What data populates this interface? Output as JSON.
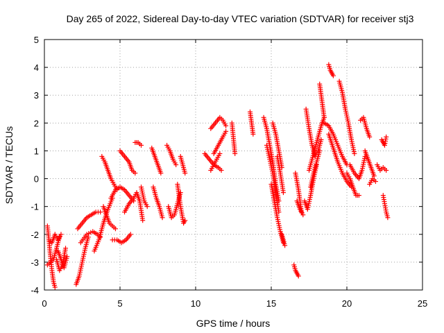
{
  "chart_data": {
    "type": "scatter",
    "title": "Day 265 of 2022, Sidereal Day-to-day VTEC variation (SDTVAR) for receiver stj3",
    "xlabel": "GPS time / hours",
    "ylabel": "SDTVAR / TECUs",
    "xlim": [
      0,
      25
    ],
    "ylim": [
      -4,
      5
    ],
    "xticks": [
      0,
      5,
      10,
      15,
      20,
      25
    ],
    "yticks": [
      -4,
      -3,
      -2,
      -1,
      0,
      1,
      2,
      3,
      4,
      5
    ],
    "grid": true,
    "marker": "plus",
    "color": "#ff0000",
    "segments": [
      {
        "x": [
          0.2,
          0.3,
          0.4,
          0.5,
          0.6,
          0.7
        ],
        "y": [
          -1.7,
          -2.2,
          -2.8,
          -3.3,
          -3.7,
          -3.9
        ]
      },
      {
        "x": [
          0.2,
          0.4,
          0.6,
          0.8,
          1.0
        ],
        "y": [
          -3.1,
          -3.0,
          -2.9,
          -2.5,
          -2.1
        ]
      },
      {
        "x": [
          0.3,
          0.5,
          0.7,
          0.9,
          1.1
        ],
        "y": [
          -2.2,
          -2.3,
          -2.0,
          -2.2,
          -2.0
        ]
      },
      {
        "x": [
          0.8,
          1.0,
          1.2,
          1.4
        ],
        "y": [
          -2.9,
          -3.3,
          -3.1,
          -2.5
        ]
      },
      {
        "x": [
          0.9,
          1.1,
          1.3,
          1.5
        ],
        "y": [
          -2.6,
          -2.9,
          -3.2,
          -2.8
        ]
      },
      {
        "x": [
          2.1,
          2.3,
          2.5,
          2.7,
          2.9
        ],
        "y": [
          -3.8,
          -3.5,
          -3.0,
          -2.5,
          -2.1
        ]
      },
      {
        "x": [
          2.2,
          2.5,
          2.8,
          3.1,
          3.4,
          3.7
        ],
        "y": [
          -1.8,
          -1.6,
          -1.4,
          -1.3,
          -1.2,
          -1.2
        ]
      },
      {
        "x": [
          2.4,
          2.8,
          3.2,
          3.5,
          3.7
        ],
        "y": [
          -2.3,
          -2.0,
          -1.9,
          -2.0,
          -2.1
        ]
      },
      {
        "x": [
          3.3,
          3.6,
          3.9,
          4.2,
          4.5
        ],
        "y": [
          -2.6,
          -2.2,
          -1.6,
          -1.1,
          -0.7
        ]
      },
      {
        "x": [
          3.8,
          4.0,
          4.2,
          4.4,
          4.6,
          4.8
        ],
        "y": [
          0.8,
          0.6,
          0.3,
          0.0,
          -0.2,
          -0.4
        ]
      },
      {
        "x": [
          3.9,
          4.1,
          4.3,
          4.5,
          4.7
        ],
        "y": [
          -1.0,
          -1.3,
          -1.6,
          -1.7,
          -1.8
        ]
      },
      {
        "x": [
          4.5,
          4.8,
          5.1,
          5.4,
          5.7
        ],
        "y": [
          -2.2,
          -2.2,
          -2.3,
          -2.2,
          -2.0
        ]
      },
      {
        "x": [
          4.4,
          4.7,
          5.0,
          5.3,
          5.6,
          5.9
        ],
        "y": [
          -0.7,
          -0.4,
          -0.3,
          -0.4,
          -0.6,
          -0.8
        ]
      },
      {
        "x": [
          5.0,
          5.3,
          5.6,
          5.8,
          6.0
        ],
        "y": [
          1.0,
          0.8,
          0.6,
          0.3,
          0.2
        ]
      },
      {
        "x": [
          5.3,
          5.6,
          5.9,
          6.1,
          6.3,
          6.5
        ],
        "y": [
          -1.2,
          -0.9,
          -0.7,
          -0.5,
          -0.8,
          -1.5
        ]
      },
      {
        "x": [
          6.0,
          6.2,
          6.4
        ],
        "y": [
          1.3,
          1.3,
          1.2
        ]
      },
      {
        "x": [
          6.4,
          6.6,
          6.8
        ],
        "y": [
          -0.3,
          -0.8,
          -1.0
        ]
      },
      {
        "x": [
          7.1,
          7.3,
          7.5,
          7.7
        ],
        "y": [
          1.1,
          0.8,
          0.5,
          0.2
        ]
      },
      {
        "x": [
          7.2,
          7.4,
          7.6,
          7.8
        ],
        "y": [
          -0.3,
          -0.7,
          -1.0,
          -1.4
        ]
      },
      {
        "x": [
          8.1,
          8.3,
          8.5,
          8.7
        ],
        "y": [
          1.2,
          1.0,
          0.7,
          0.5
        ]
      },
      {
        "x": [
          8.2,
          8.4,
          8.6,
          8.8,
          9.0
        ],
        "y": [
          -1.0,
          -1.4,
          -1.3,
          -0.9,
          -0.5
        ]
      },
      {
        "x": [
          8.8,
          9.0,
          9.2,
          9.3
        ],
        "y": [
          -0.2,
          -1.0,
          -1.6,
          -1.5
        ]
      },
      {
        "x": [
          9.0,
          9.1,
          9.2,
          9.3
        ],
        "y": [
          0.8,
          0.6,
          0.4,
          0.2
        ]
      },
      {
        "x": [
          10.6,
          10.9,
          11.2,
          11.5,
          11.7
        ],
        "y": [
          0.9,
          0.7,
          0.5,
          0.4,
          0.3
        ]
      },
      {
        "x": [
          11.0,
          11.3,
          11.6,
          11.8,
          12.0
        ],
        "y": [
          1.8,
          2.0,
          2.2,
          2.1,
          1.9
        ]
      },
      {
        "x": [
          11.2,
          11.5,
          11.8,
          12.0
        ],
        "y": [
          0.9,
          1.2,
          1.5,
          1.7
        ]
      },
      {
        "x": [
          11.0,
          11.2,
          11.4,
          11.6
        ],
        "y": [
          0.3,
          0.5,
          0.7,
          0.9
        ]
      },
      {
        "x": [
          12.4,
          12.6
        ],
        "y": [
          2.0,
          0.9
        ]
      },
      {
        "x": [
          13.6,
          13.8
        ],
        "y": [
          2.4,
          1.6
        ]
      },
      {
        "x": [
          14.5,
          14.7,
          14.9,
          15.1,
          15.3,
          15.5
        ],
        "y": [
          2.2,
          1.8,
          1.2,
          0.6,
          -0.2,
          -0.8
        ]
      },
      {
        "x": [
          14.7,
          14.9,
          15.1,
          15.3,
          15.5
        ],
        "y": [
          1.2,
          0.7,
          0.2,
          -0.5,
          -1.2
        ]
      },
      {
        "x": [
          15.0,
          15.2,
          15.4,
          15.6,
          15.8
        ],
        "y": [
          -0.2,
          -0.8,
          -1.4,
          -1.9,
          -2.3
        ]
      },
      {
        "x": [
          15.1,
          15.3,
          15.5,
          15.7
        ],
        "y": [
          2.0,
          1.6,
          1.0,
          0.4
        ]
      },
      {
        "x": [
          15.4,
          15.6,
          15.8
        ],
        "y": [
          0.8,
          0.2,
          -0.5
        ]
      },
      {
        "x": [
          15.7,
          15.8,
          15.9
        ],
        "y": [
          -2.0,
          -2.2,
          -2.4
        ]
      },
      {
        "x": [
          16.5,
          16.6,
          16.7,
          16.8
        ],
        "y": [
          -3.1,
          -3.3,
          -3.4,
          -3.5
        ]
      },
      {
        "x": [
          16.6,
          16.8,
          17.0
        ],
        "y": [
          0.2,
          -0.4,
          -1.2
        ]
      },
      {
        "x": [
          16.7,
          16.9,
          17.1
        ],
        "y": [
          -0.8,
          -1.1,
          -1.3
        ]
      },
      {
        "x": [
          17.2,
          17.4,
          17.6,
          17.8,
          18.0
        ],
        "y": [
          -0.8,
          -1.1,
          -0.6,
          0.0,
          0.5
        ]
      },
      {
        "x": [
          17.3,
          17.5,
          17.7,
          17.9,
          18.1,
          18.3
        ],
        "y": [
          2.5,
          1.8,
          1.2,
          0.8,
          1.0,
          1.4
        ]
      },
      {
        "x": [
          17.5,
          17.7,
          17.9,
          18.1,
          18.3,
          18.5
        ],
        "y": [
          0.3,
          0.7,
          1.1,
          1.5,
          1.9,
          2.2
        ]
      },
      {
        "x": [
          17.6,
          17.8,
          18.0,
          18.2
        ],
        "y": [
          -0.3,
          0.2,
          0.6,
          1.0
        ]
      },
      {
        "x": [
          18.2,
          18.3,
          18.4,
          18.5
        ],
        "y": [
          3.4,
          3.0,
          2.6,
          2.2
        ]
      },
      {
        "x": [
          18.8,
          18.9,
          19.0,
          19.1
        ],
        "y": [
          4.1,
          3.9,
          3.8,
          3.7
        ]
      },
      {
        "x": [
          18.5,
          18.8,
          19.1,
          19.4,
          19.7,
          20.0
        ],
        "y": [
          2.0,
          1.9,
          1.6,
          1.2,
          0.8,
          0.5
        ]
      },
      {
        "x": [
          18.8,
          19.1,
          19.4,
          19.7,
          20.0,
          20.3
        ],
        "y": [
          1.6,
          1.1,
          0.6,
          0.2,
          -0.1,
          -0.3
        ]
      },
      {
        "x": [
          19.5,
          19.7,
          19.9,
          20.1,
          20.3,
          20.5
        ],
        "y": [
          3.5,
          3.1,
          2.5,
          2.0,
          1.4,
          0.9
        ]
      },
      {
        "x": [
          20.0,
          20.2,
          20.4,
          20.6,
          20.8
        ],
        "y": [
          0.2,
          0.0,
          -0.3,
          -0.6,
          -0.6
        ]
      },
      {
        "x": [
          20.2,
          20.5,
          20.8,
          21.0,
          21.2
        ],
        "y": [
          0.5,
          0.2,
          0.0,
          0.3,
          0.8
        ]
      },
      {
        "x": [
          20.9,
          21.1,
          21.3,
          21.5
        ],
        "y": [
          2.1,
          2.2,
          1.8,
          1.5
        ]
      },
      {
        "x": [
          21.2,
          21.4,
          21.6,
          21.8
        ],
        "y": [
          1.0,
          0.7,
          0.4,
          0.1
        ]
      },
      {
        "x": [
          21.5,
          21.7,
          21.9
        ],
        "y": [
          -0.2,
          0.0,
          -0.1
        ]
      },
      {
        "x": [
          22.0,
          22.2,
          22.4,
          22.6
        ],
        "y": [
          0.5,
          0.3,
          0.4,
          0.3
        ]
      },
      {
        "x": [
          22.3,
          22.4,
          22.5,
          22.6
        ],
        "y": [
          1.4,
          1.3,
          1.2,
          1.5
        ]
      },
      {
        "x": [
          22.4,
          22.5,
          22.6,
          22.7
        ],
        "y": [
          -0.6,
          -0.9,
          -1.2,
          -1.4
        ]
      }
    ]
  }
}
